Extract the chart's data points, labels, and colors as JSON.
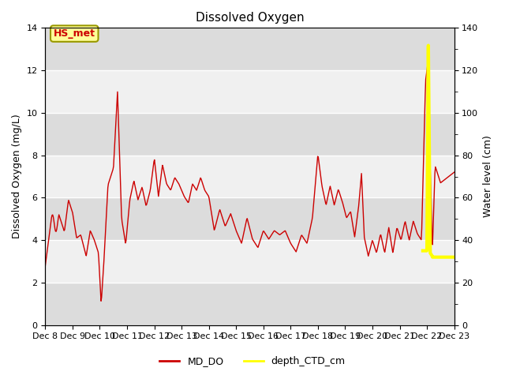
{
  "title": "Dissolved Oxygen",
  "ylabel_left": "Dissolved Oxygen (mg/L)",
  "ylabel_right": "Water level (cm)",
  "xlim_days": [
    8,
    23
  ],
  "ylim_left": [
    0,
    14
  ],
  "ylim_right": [
    0,
    140
  ],
  "yticks_left": [
    0,
    2,
    4,
    6,
    8,
    10,
    12,
    14
  ],
  "yticks_right": [
    0,
    20,
    40,
    60,
    80,
    100,
    120,
    140
  ],
  "xtick_labels": [
    "Dec 8",
    "Dec 9",
    "Dec 10",
    "Dec 11",
    "Dec 12",
    "Dec 13",
    "Dec 14",
    "Dec 15",
    "Dec 16",
    "Dec 17",
    "Dec 18",
    "Dec 19",
    "Dec 20",
    "Dec 21",
    "Dec 22",
    "Dec 23"
  ],
  "md_do_color": "#cc0000",
  "depth_ctd_color": "#ffff00",
  "legend_md_do_label": "MD_DO",
  "legend_depth_label": "depth_CTD_cm",
  "annotation_text": "HS_met",
  "annotation_bg": "#ffff99",
  "annotation_border": "#999900",
  "annotation_text_color": "#cc0000",
  "band_light": "#f0f0f0",
  "band_dark": "#dcdcdc",
  "fig_bg": "#ffffff",
  "title_fontsize": 11,
  "axis_label_fontsize": 9,
  "tick_fontsize": 8
}
